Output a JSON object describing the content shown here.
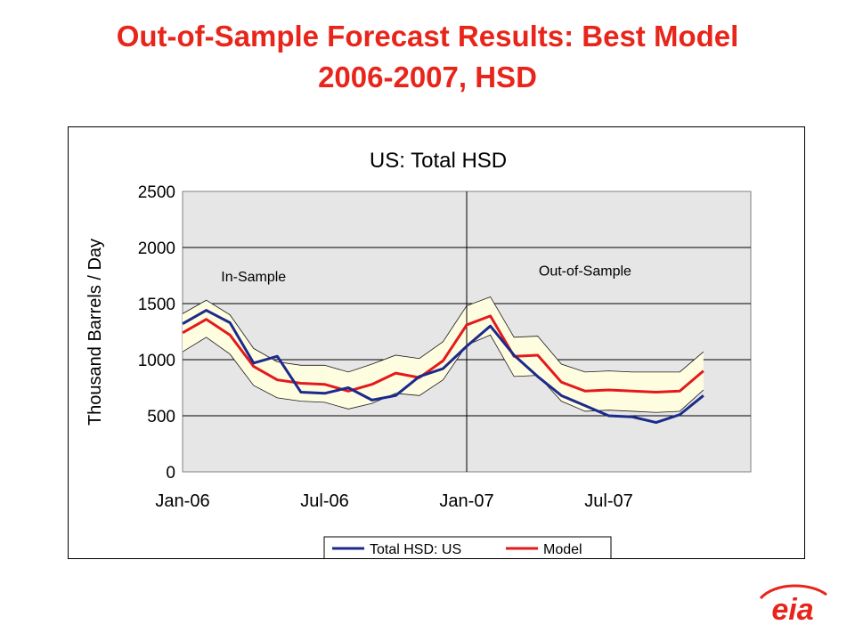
{
  "slide": {
    "title_line1": "Out-of-Sample Forecast Results:  Best Model",
    "title_line2": "2006-2007, HSD"
  },
  "logo": {
    "text": "eia",
    "color": "#e8251b"
  },
  "colors": {
    "title": "#e8251b",
    "actual": "#1c2a8c",
    "model": "#e31a1c",
    "band_fill": "#fffde0",
    "plot_bg": "#e6e6e6"
  },
  "chart_data": {
    "type": "line",
    "title": "US:  Total HSD",
    "ylabel": "Thousand Barrels / Day",
    "xlabel": "",
    "ylim": [
      0,
      2500
    ],
    "yticks": [
      0,
      500,
      1000,
      1500,
      2000,
      2500
    ],
    "xtick_labels": [
      "Jan-06",
      "Jul-06",
      "Jan-07",
      "Jul-07"
    ],
    "x": [
      "Jan-06",
      "Feb-06",
      "Mar-06",
      "Apr-06",
      "May-06",
      "Jun-06",
      "Jul-06",
      "Aug-06",
      "Sep-06",
      "Oct-06",
      "Nov-06",
      "Dec-06",
      "Jan-07",
      "Feb-07",
      "Mar-07",
      "Apr-07",
      "May-07",
      "Jun-07",
      "Jul-07",
      "Aug-07",
      "Sep-07",
      "Oct-07",
      "Nov-07",
      "Dec-07"
    ],
    "grid": true,
    "legend_position": "bottom",
    "annotations": [
      {
        "text": "In-Sample",
        "at": "Apr-06",
        "y": 1700
      },
      {
        "text": "Out-of-Sample",
        "at": "Jun-07",
        "y": 1750
      }
    ],
    "divider_at": "Jan-07",
    "series": [
      {
        "name": "Total HSD: US",
        "color": "#1c2a8c",
        "values": [
          1320,
          1440,
          1330,
          970,
          1030,
          710,
          700,
          750,
          640,
          680,
          850,
          920,
          1120,
          1300,
          1040,
          850,
          680,
          590,
          500,
          490,
          440,
          510,
          680,
          null
        ]
      },
      {
        "name": "Model",
        "color": "#e31a1c",
        "values": [
          1240,
          1360,
          1220,
          940,
          820,
          790,
          780,
          720,
          780,
          880,
          840,
          990,
          1310,
          1390,
          1030,
          1040,
          800,
          720,
          730,
          720,
          710,
          720,
          900,
          null
        ]
      }
    ],
    "band": {
      "upper": [
        1410,
        1530,
        1400,
        1100,
        980,
        950,
        950,
        890,
        960,
        1040,
        1010,
        1160,
        1480,
        1560,
        1200,
        1210,
        960,
        890,
        900,
        890,
        890,
        890,
        1070,
        null
      ],
      "lower": [
        1070,
        1200,
        1050,
        770,
        660,
        630,
        620,
        560,
        610,
        700,
        680,
        820,
        1130,
        1220,
        850,
        860,
        630,
        540,
        550,
        540,
        530,
        540,
        730,
        null
      ]
    }
  }
}
